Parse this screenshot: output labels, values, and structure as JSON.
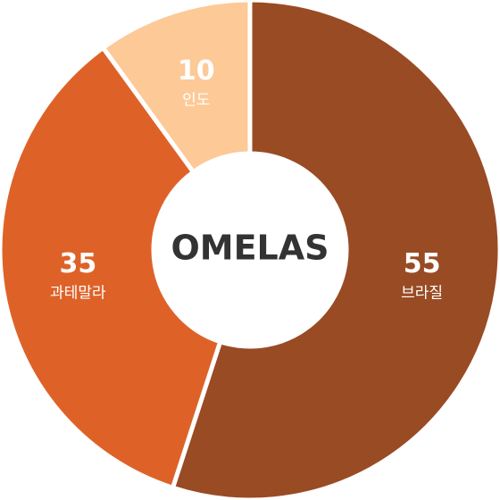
{
  "chart_data": {
    "type": "donut",
    "center_text": "OMELAS",
    "categories": [
      "브라질",
      "과테말라",
      "인도"
    ],
    "values": [
      55,
      35,
      10
    ],
    "colors": [
      "#994b24",
      "#de6228",
      "#fdc997"
    ]
  }
}
